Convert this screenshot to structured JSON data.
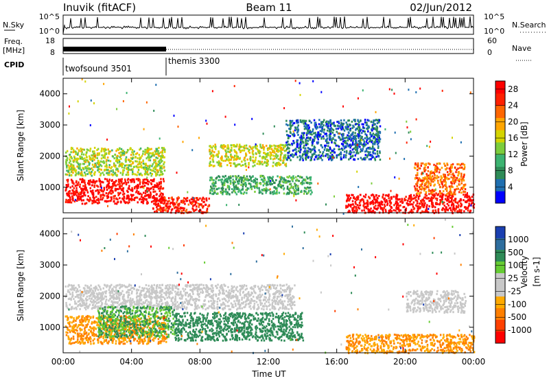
{
  "header": {
    "station": "Inuvik (fitACF)",
    "beam": "Beam 11",
    "date": "02/Jun/2012"
  },
  "top_panels": {
    "nsky_label": "N.Sky",
    "nsky_ticks": [
      "10^5",
      "10^0"
    ],
    "nsearch_label": "N.Search",
    "nsearch_ticks": [
      "10^5",
      "10^0"
    ],
    "freq_label": "Freq.",
    "freq_unit": "[MHz]",
    "freq_ticks": [
      "18",
      "8"
    ],
    "nave_label": "Nave",
    "nave_ticks": [
      "60",
      "0"
    ],
    "cpid_label": "CPID",
    "cpid_segments": [
      {
        "name": "twofsound 3501",
        "start_hour": 0,
        "end_hour": 6
      },
      {
        "name": "themis 3300",
        "start_hour": 6,
        "end_hour": 24
      }
    ]
  },
  "colors": {
    "power_scale": [
      "#0000ff",
      "#1f6fb0",
      "#2e8b57",
      "#3cb371",
      "#7ccd3c",
      "#d4d400",
      "#ffa500",
      "#ff6600",
      "#ff2000",
      "#ff0000"
    ],
    "velocity_scale": [
      "#1a3fb0",
      "#2e6e9e",
      "#2e8b57",
      "#66cc33",
      "#c8c8c8",
      "#c8c8c8",
      "#ffaa00",
      "#ff7f00",
      "#ff4000",
      "#ff0000"
    ]
  },
  "chart_data": [
    {
      "type": "heatmap",
      "name": "power",
      "ylabel": "Slant Range [km]",
      "xlabel": "",
      "x_ticks": [
        "00:00",
        "04:00",
        "08:00",
        "12:00",
        "16:00",
        "20:00",
        "00:00"
      ],
      "y_ticks": [
        "1000",
        "2000",
        "3000",
        "4000"
      ],
      "xlim_hours": [
        0,
        24
      ],
      "ylim_km": [
        180,
        4500
      ],
      "colorbar_label": "Power [dB]",
      "colorbar_ticks": [
        "4",
        "8",
        "12",
        "16",
        "20",
        "24",
        "28"
      ],
      "colorbar_range": [
        0,
        30
      ],
      "blobs": [
        {
          "t0": 0.1,
          "t1": 5.9,
          "r0": 500,
          "r1": 1300,
          "value": 28
        },
        {
          "t0": 0.1,
          "t1": 5.9,
          "r0": 1400,
          "r1": 2300,
          "value": 15
        },
        {
          "t0": 5.2,
          "t1": 8.5,
          "r0": 200,
          "r1": 700,
          "value": 27
        },
        {
          "t0": 8.5,
          "t1": 13.0,
          "r0": 1700,
          "r1": 2400,
          "value": 16
        },
        {
          "t0": 8.5,
          "t1": 14.5,
          "r0": 800,
          "r1": 1400,
          "value": 10
        },
        {
          "t0": 13.0,
          "t1": 18.5,
          "r0": 1900,
          "r1": 3200,
          "value": 5
        },
        {
          "t0": 16.5,
          "t1": 24.0,
          "r0": 200,
          "r1": 800,
          "value": 28
        },
        {
          "t0": 20.5,
          "t1": 23.5,
          "r0": 800,
          "r1": 1800,
          "value": 22
        }
      ]
    },
    {
      "type": "heatmap",
      "name": "velocity",
      "ylabel": "Slant Range [km]",
      "xlabel": "Time UT",
      "x_ticks": [
        "00:00",
        "04:00",
        "08:00",
        "12:00",
        "16:00",
        "20:00",
        "00:00"
      ],
      "y_ticks": [
        "1000",
        "2000",
        "3000",
        "4000"
      ],
      "xlim_hours": [
        0,
        24
      ],
      "ylim_km": [
        180,
        4500
      ],
      "colorbar_label": "Velocity",
      "colorbar_unit": "[m s-1]",
      "colorbar_ticks": [
        "1000",
        "500",
        "100",
        "25",
        "-25",
        "-100",
        "-500",
        "-1000"
      ],
      "blobs": [
        {
          "t0": 0.1,
          "t1": 6.0,
          "r0": 500,
          "r1": 1400,
          "value": -100
        },
        {
          "t0": 0.1,
          "t1": 13.5,
          "r0": 1600,
          "r1": 2400,
          "value": 0
        },
        {
          "t0": 2.0,
          "t1": 6.5,
          "r0": 700,
          "r1": 1700,
          "value": 100
        },
        {
          "t0": 6.5,
          "t1": 14.0,
          "r0": 600,
          "r1": 1500,
          "value": 300
        },
        {
          "t0": 16.5,
          "t1": 24.0,
          "r0": 200,
          "r1": 800,
          "value": -100
        },
        {
          "t0": 20.0,
          "t1": 23.5,
          "r0": 1500,
          "r1": 2200,
          "value": 0
        }
      ]
    }
  ]
}
